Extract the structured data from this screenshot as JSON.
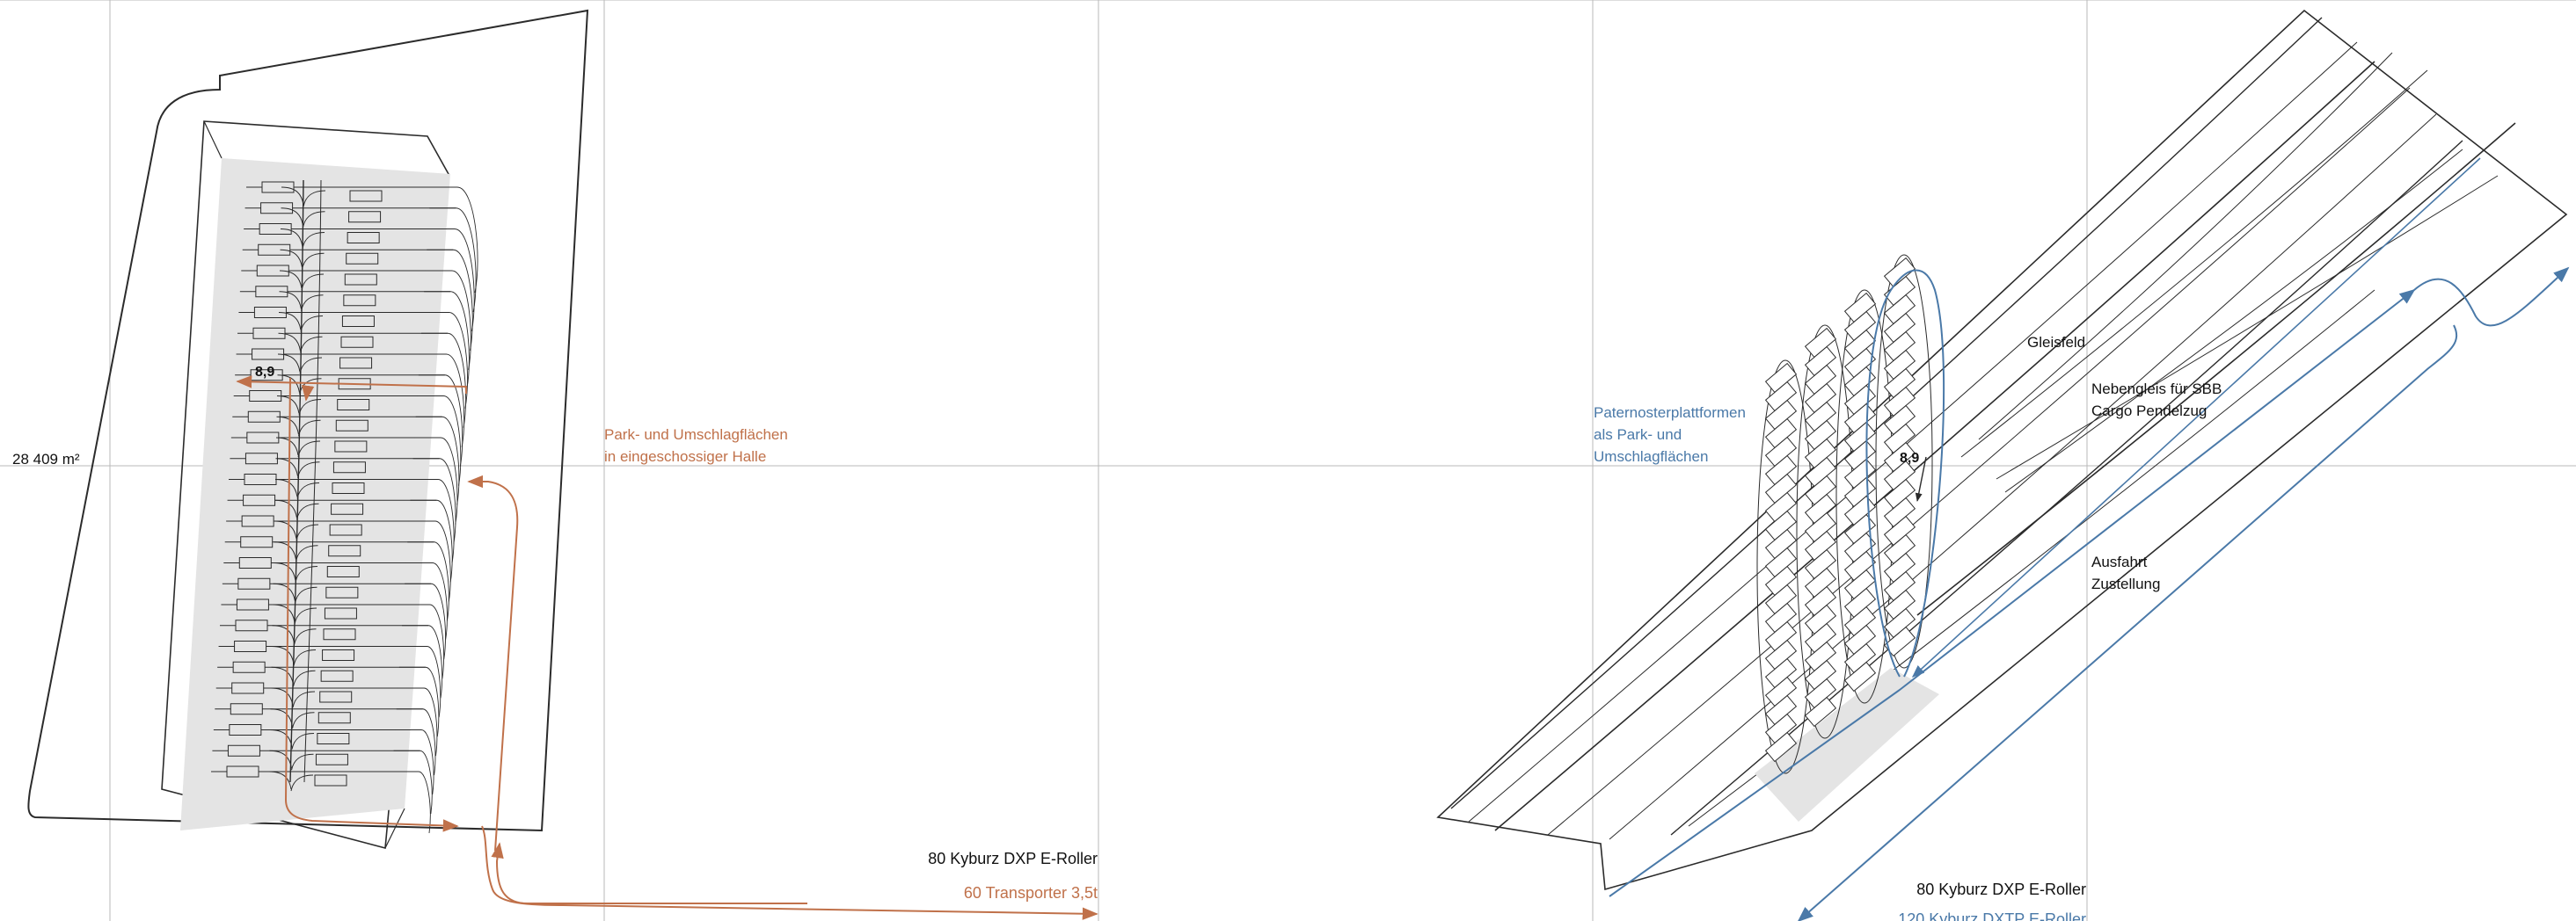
{
  "colors": {
    "ink": "#2b2b2b",
    "grid": "#b8b8b8",
    "shade": "#e4e4e4",
    "orange": "#c0714a",
    "blue": "#4a79a8"
  },
  "left_plan": {
    "area_label": "28 409 m²",
    "dimension_label": "8,9",
    "hall_label_line1": "Park- und Umschlagflächen",
    "hall_label_line2": "in eingeschossiger Halle",
    "legend_black": "80 Kyburz DXP E-Roller",
    "legend_orange": "60 Transporter 3,5t"
  },
  "right_plan": {
    "dimension_label": "8,9",
    "paternoster_line1": "Paternosterplattformen",
    "paternoster_line2": "als Park- und",
    "paternoster_line3": "Umschlagflächen",
    "gleisfeld": "Gleisfeld",
    "nebengleis_line1": "Nebengleis für SBB",
    "nebengleis_line2": "Cargo Pendelzug",
    "ausfahrt_line1": "Ausfahrt",
    "ausfahrt_line2": "Zustellung",
    "legend_black": "80 Kyburz DXP E-Roller",
    "legend_blue": "120 Kyburz DXTP E-Roller"
  }
}
